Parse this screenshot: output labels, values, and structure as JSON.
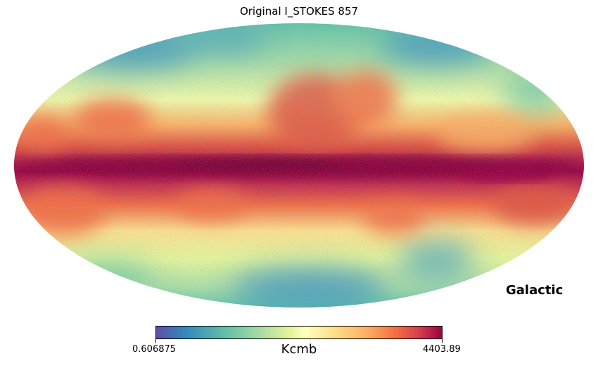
{
  "title": "Original I_STOKES 857",
  "coordinate_system": "Galactic",
  "projection": "mollweide",
  "colorbar": {
    "colormap": "Spectral_r",
    "min_label": "0.606875",
    "max_label": "4403.89",
    "unit": "Kcmb",
    "colors": [
      "#5e4fa2",
      "#3288bd",
      "#66c2a5",
      "#abdda4",
      "#e6f598",
      "#ffffbf",
      "#fee08b",
      "#fdae61",
      "#f46d43",
      "#d53e4f",
      "#9e0142"
    ]
  }
}
